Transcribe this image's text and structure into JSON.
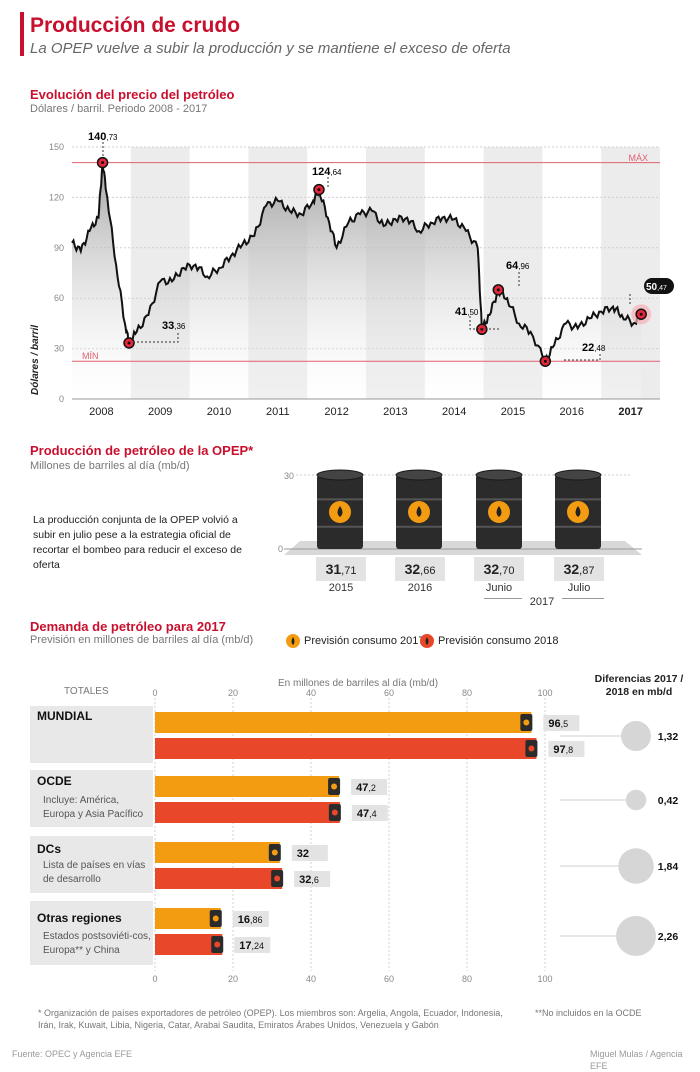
{
  "header": {
    "title": "Producción de crudo",
    "subtitle": "La OPEP vuelve a subir la producción y se mantiene el exceso de oferta"
  },
  "price_section": {
    "title": "Evolución del precio del petróleo",
    "subtitle": "Dólares / barril. Periodo 2008 - 2017",
    "y_label": "Dólares / barril",
    "max_label": "MÁX",
    "min_label": "MÍN",
    "callouts": [
      {
        "id": "c1",
        "int": "140",
        "dec": ",73"
      },
      {
        "id": "c2",
        "int": "33",
        "dec": ",36"
      },
      {
        "id": "c3",
        "int": "124",
        "dec": ",64"
      },
      {
        "id": "c4",
        "int": "41",
        "dec": ",50"
      },
      {
        "id": "c5",
        "int": "64",
        "dec": ",96"
      },
      {
        "id": "c6",
        "int": "22",
        "dec": ",48"
      },
      {
        "id": "c7",
        "int": "50",
        "dec": ",47"
      }
    ]
  },
  "production_section": {
    "title": "Producción de petróleo de la OPEP*",
    "subtitle": "Millones de barriles al día (mb/d)",
    "note": "La producción conjunta de la OPEP volvió a subir en julio pese a la estrategia oficial de recortar el bombeo para reducir el exceso de oferta",
    "axis_top": "30",
    "axis_bottom": "0",
    "year_2017": "2017",
    "items": [
      {
        "int": "31",
        "dec": ",71",
        "label": "2015"
      },
      {
        "int": "32",
        "dec": ",66",
        "label": "2016"
      },
      {
        "int": "32",
        "dec": ",70",
        "label": "Junio"
      },
      {
        "int": "32",
        "dec": ",87",
        "label": "Julio"
      }
    ]
  },
  "demand_section": {
    "title": "Demanda de petróleo para 2017",
    "subtitle": "Previsión en millones de barriles al día (mb/d)",
    "legend_2017": "Previsión consumo 2017",
    "legend_2018": "Previsión consumo 2018",
    "totals_label": "TOTALES",
    "axis_title": "En millones de barriles al día (mb/d)",
    "diff_title": "Diferencias 2017 / 2018 en mb/d",
    "groups": [
      {
        "name": "MUNDIAL",
        "desc": "",
        "v2017": "96",
        "d2017": ",5",
        "v2018": "97",
        "d2018": ",8",
        "diff": "1,32"
      },
      {
        "name": "OCDE",
        "desc": "Incluye: América, Europa y Asia Pacífico",
        "v2017": "47",
        "d2017": ",2",
        "v2018": "47",
        "d2018": ",4",
        "diff": "0,42"
      },
      {
        "name": "DCs",
        "desc": "Lista de países en vías de desarrollo",
        "v2017": "32",
        "d2017": "",
        "v2018": "32",
        "d2018": ",6",
        "diff": "1,84"
      },
      {
        "name": "Otras regiones",
        "desc": "Estados postsoviéti-cos, Europa** y China",
        "v2017": "16",
        "d2017": ",86",
        "v2018": "17",
        "d2018": ",24",
        "diff": "2,26"
      }
    ]
  },
  "footer": {
    "note": "* Organización de países exportadores de petróleo (OPEP). Los miembros son: Argelia, Angola, Ecuador, Indonesia, Irán, Irak, Kuwait, Libia, Nigeria, Catar, Arabai Saudita, Emiratos Árabes Unidos, Venezuela y Gabón",
    "note2": "**No incluidos en la OCDE",
    "source": "Fuente: OPEC y Agencia EFE",
    "author": "Miguel Mulas / Agencia EFE"
  },
  "colors": {
    "accent": "#c8102e",
    "orange": "#f39c12",
    "red": "#e8472a",
    "gray": "#e8e8e9"
  },
  "chart_data": [
    {
      "type": "area",
      "title": "Evolución del precio del petróleo",
      "ylabel": "Dólares / barril",
      "x_categories": [
        "2008",
        "2009",
        "2010",
        "2011",
        "2012",
        "2013",
        "2014",
        "2015",
        "2016",
        "2017"
      ],
      "y_ticks": [
        "150",
        "120",
        "90",
        "60",
        "30",
        "0"
      ],
      "ylim": [
        0,
        150
      ],
      "max_line": 140.73,
      "min_line": 22.48,
      "x": [
        2008.0,
        2008.15,
        2008.3,
        2008.45,
        2008.52,
        2008.6,
        2008.75,
        2008.9,
        2008.97,
        2009.1,
        2009.3,
        2009.5,
        2009.7,
        2009.9,
        2010.1,
        2010.3,
        2010.5,
        2010.7,
        2010.9,
        2011.1,
        2011.3,
        2011.5,
        2011.7,
        2011.9,
        2012.1,
        2012.2,
        2012.35,
        2012.5,
        2012.7,
        2012.9,
        2013.1,
        2013.3,
        2013.5,
        2013.7,
        2013.9,
        2014.1,
        2014.3,
        2014.5,
        2014.7,
        2014.9,
        2014.97,
        2015.1,
        2015.25,
        2015.4,
        2015.6,
        2015.8,
        2016.05,
        2016.2,
        2016.4,
        2016.6,
        2016.8,
        2017.0,
        2017.2,
        2017.35,
        2017.55,
        2017.68
      ],
      "y": [
        93,
        88,
        100,
        108,
        140.73,
        120,
        80,
        45,
        33.36,
        40,
        50,
        70,
        70,
        78,
        80,
        73,
        78,
        85,
        92,
        97,
        115,
        118,
        112,
        110,
        118,
        124.64,
        108,
        90,
        105,
        110,
        112,
        103,
        107,
        108,
        100,
        105,
        108,
        107,
        100,
        90,
        41.5,
        50,
        64.96,
        60,
        45,
        40,
        22.48,
        32,
        45,
        42,
        48,
        52,
        55,
        50,
        45,
        50.47
      ],
      "highlights": [
        {
          "x": 2008.52,
          "y": 140.73
        },
        {
          "x": 2008.97,
          "y": 33.36
        },
        {
          "x": 2012.2,
          "y": 124.64
        },
        {
          "x": 2014.97,
          "y": 41.5
        },
        {
          "x": 2015.25,
          "y": 64.96
        },
        {
          "x": 2016.05,
          "y": 22.48
        },
        {
          "x": 2017.68,
          "y": 50.47
        }
      ]
    },
    {
      "type": "bar",
      "title": "Producción de petróleo de la OPEP",
      "categories": [
        "2015",
        "2016",
        "Junio 2017",
        "Julio 2017"
      ],
      "values": [
        31.71,
        32.66,
        32.7,
        32.87
      ],
      "ylim": [
        0,
        30
      ]
    },
    {
      "type": "bar",
      "title": "Demanda de petróleo para 2017",
      "categories": [
        "MUNDIAL",
        "OCDE",
        "DCs",
        "Otras regiones"
      ],
      "series": [
        {
          "name": "Previsión consumo 2017",
          "values": [
            96.5,
            47.2,
            32,
            16.86
          ]
        },
        {
          "name": "Previsión consumo 2018",
          "values": [
            97.8,
            47.4,
            32.6,
            17.24
          ]
        }
      ],
      "differences": [
        1.32,
        0.42,
        1.84,
        2.26
      ],
      "x_ticks": [
        "0",
        "20",
        "40",
        "60",
        "80",
        "100"
      ],
      "xlim": [
        0,
        100
      ]
    }
  ]
}
